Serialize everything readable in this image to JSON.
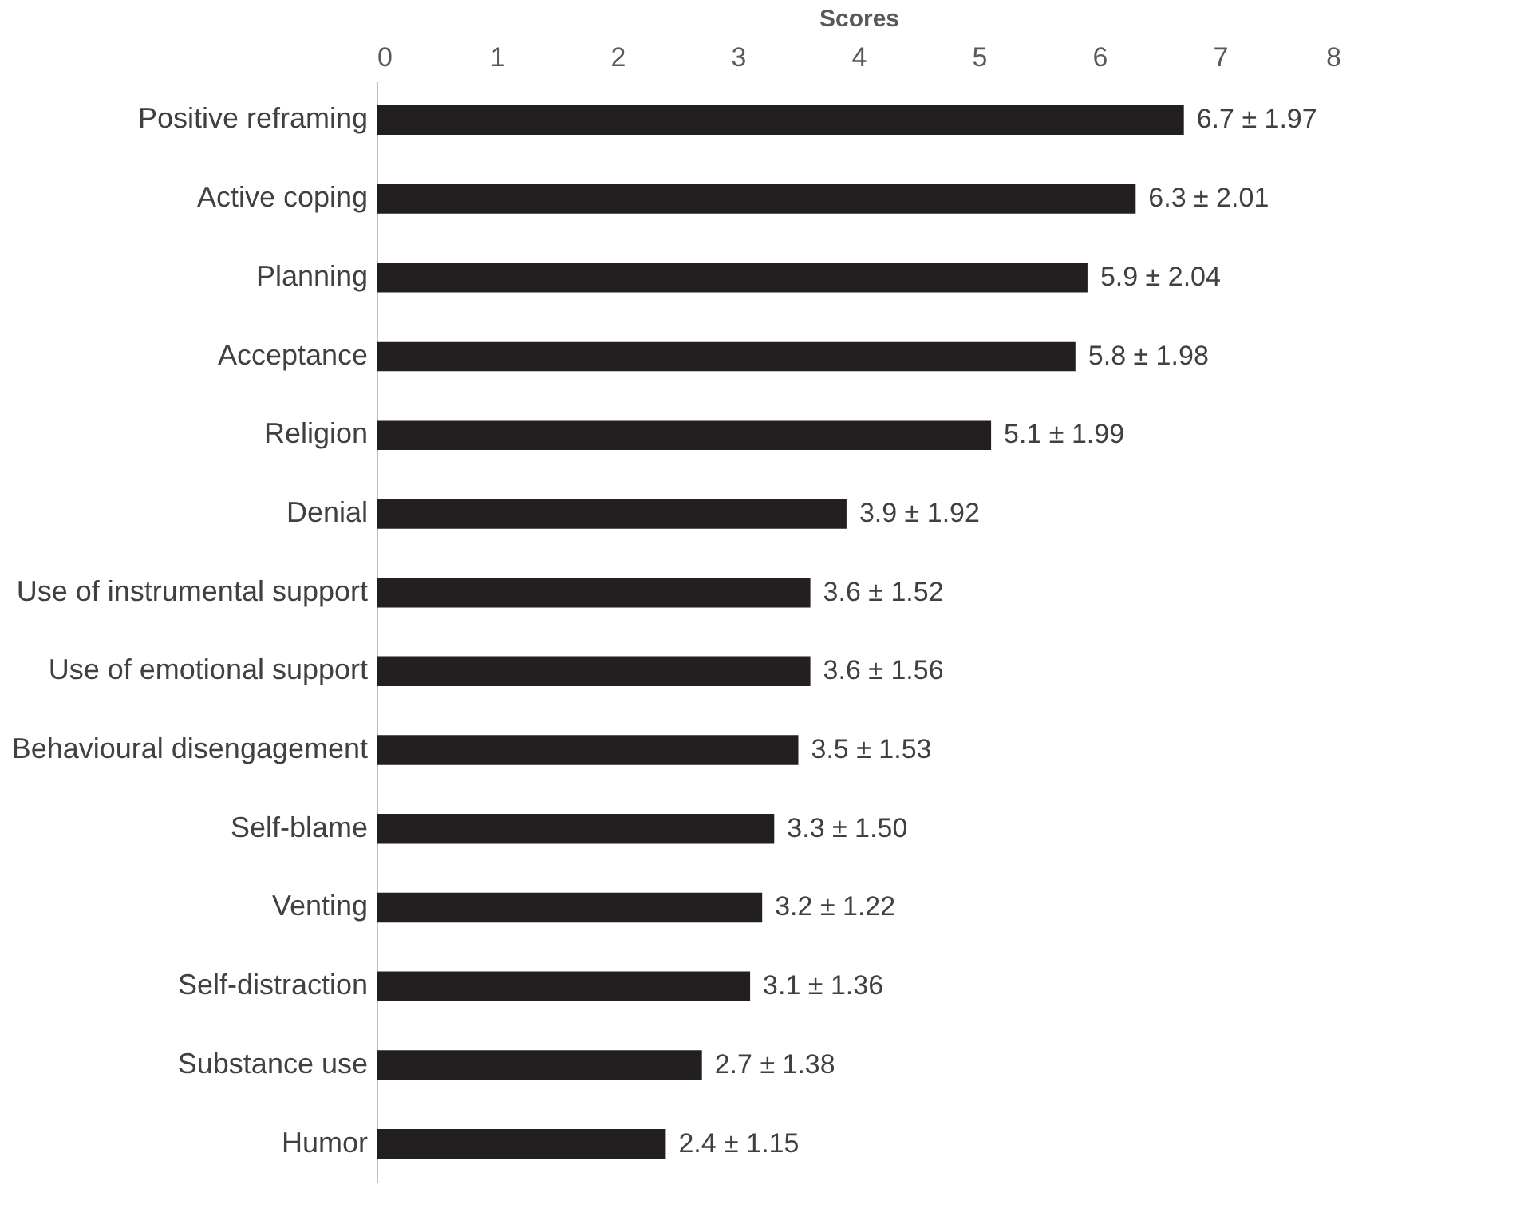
{
  "chart_data": {
    "type": "bar",
    "orientation": "horizontal",
    "xlabel": "Scores",
    "categories": [
      "Positive reframing",
      "Active coping",
      "Planning",
      "Acceptance",
      "Religion",
      "Denial",
      "Use of instrumental support",
      "Use of emotional support",
      "Behavioural disengagement",
      "Self-blame",
      "Venting",
      "Self-distraction",
      "Substance use",
      "Humor"
    ],
    "values": [
      6.7,
      6.3,
      5.9,
      5.8,
      5.1,
      3.9,
      3.6,
      3.6,
      3.5,
      3.3,
      3.2,
      3.1,
      2.7,
      2.4
    ],
    "value_labels": [
      "6.7 ± 1.97",
      "6.3 ± 2.01",
      "5.9 ± 2.04",
      "5.8 ± 1.98",
      "5.1 ± 1.99",
      "3.9 ± 1.92",
      "3.6 ± 1.52",
      "3.6 ± 1.56",
      "3.5 ± 1.53",
      "3.3 ± 1.50",
      "3.2 ± 1.22",
      "3.1 ± 1.36",
      "2.7 ± 1.38",
      "2.4 ± 1.15"
    ],
    "color": "#231f20",
    "xlim": [
      0,
      8
    ],
    "xticks": [
      0,
      1,
      2,
      3,
      4,
      5,
      6,
      7,
      8
    ]
  }
}
